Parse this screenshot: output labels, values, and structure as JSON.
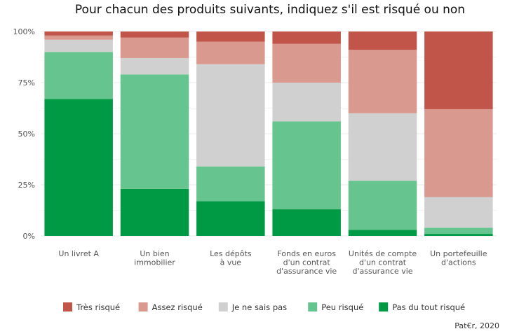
{
  "chart_data": {
    "type": "bar",
    "stacked": true,
    "title": "Pour chacun des produits suivants, indiquez s'il est risqué ou non",
    "caption": "Pat€r, 2020",
    "y_ticks": [
      "0%",
      "25%",
      "50%",
      "75%",
      "100%"
    ],
    "ylim": [
      0,
      100
    ],
    "grid": true,
    "legend_position": "bottom",
    "categories": [
      [
        "Un livret A"
      ],
      [
        "Un bien",
        "immobilier"
      ],
      [
        "Les dépôts",
        "à vue"
      ],
      [
        "Fonds en euros",
        "d'un contrat",
        "d'assurance vie"
      ],
      [
        "Unités de compte",
        "d'un contrat",
        "d'assurance vie"
      ],
      [
        "Un portefeuille",
        "d'actions"
      ]
    ],
    "series": [
      {
        "name": "Pas du tout risqué",
        "color": "#009a44",
        "values": [
          67,
          23,
          17,
          13,
          3,
          1
        ]
      },
      {
        "name": "Peu risqué",
        "color": "#66c48e",
        "values": [
          23,
          56,
          17,
          43,
          24,
          3
        ]
      },
      {
        "name": "Je ne sais pas",
        "color": "#d0d0d0",
        "values": [
          6,
          8,
          50,
          19,
          33,
          15
        ]
      },
      {
        "name": "Assez risqué",
        "color": "#d9998f",
        "values": [
          2,
          10,
          11,
          19,
          31,
          43
        ]
      },
      {
        "name": "Très risqué",
        "color": "#c1554a",
        "values": [
          2,
          3,
          5,
          6,
          9,
          38
        ]
      }
    ],
    "legend_order": [
      "Très risqué",
      "Assez risqué",
      "Je ne sais pas",
      "Peu risqué",
      "Pas du tout risqué"
    ]
  }
}
